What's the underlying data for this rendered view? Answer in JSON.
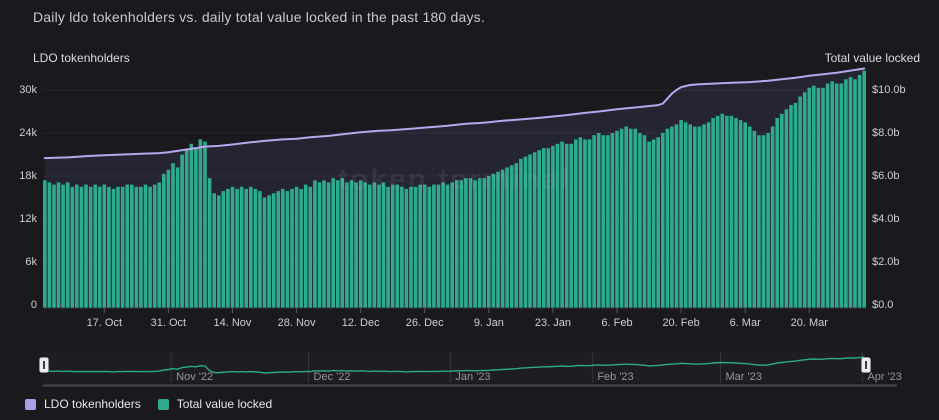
{
  "title": "Daily ldo tokenholders vs. daily total value locked in the past 180 days.",
  "axes": {
    "left": {
      "title": "LDO tokenholders"
    },
    "right": {
      "title": "Total value locked"
    }
  },
  "watermark": "token terminal",
  "legend": [
    {
      "label": "LDO tokenholders",
      "color": "#aba1e8"
    },
    {
      "label": "Total value locked",
      "color": "#2dab8c"
    }
  ],
  "chart_data": {
    "type": "bar+line dual-axis daily time series",
    "days": 180,
    "x_ticks": [
      {
        "label": "17. Oct",
        "day": 13
      },
      {
        "label": "31. Oct",
        "day": 27
      },
      {
        "label": "14. Nov",
        "day": 41
      },
      {
        "label": "28. Nov",
        "day": 55
      },
      {
        "label": "12. Dec",
        "day": 69
      },
      {
        "label": "26. Dec",
        "day": 83
      },
      {
        "label": "9. Jan",
        "day": 97
      },
      {
        "label": "23. Jan",
        "day": 111
      },
      {
        "label": "6. Feb",
        "day": 125
      },
      {
        "label": "20. Feb",
        "day": 139
      },
      {
        "label": "6. Mar",
        "day": 153
      },
      {
        "label": "20. Mar",
        "day": 167
      }
    ],
    "left_axis": {
      "title": "LDO tokenholders",
      "unit": "tokenholders (thousands)",
      "min": 0,
      "max_visible": 33,
      "ticks": [
        {
          "v": 0,
          "label": "0"
        },
        {
          "v": 6,
          "label": "6k"
        },
        {
          "v": 12,
          "label": "12k"
        },
        {
          "v": 18,
          "label": "18k"
        },
        {
          "v": 24,
          "label": "24k"
        },
        {
          "v": 30,
          "label": "30k"
        }
      ]
    },
    "right_axis": {
      "title": "Total value locked",
      "unit": "$ billions",
      "min": 0,
      "max_visible": 11,
      "ticks": [
        {
          "v": 0,
          "label": "$0.0"
        },
        {
          "v": 2,
          "label": "$2.0b"
        },
        {
          "v": 4,
          "label": "$4.0b"
        },
        {
          "v": 6,
          "label": "$6.0b"
        },
        {
          "v": 8,
          "label": "$8.0b"
        },
        {
          "v": 10,
          "label": "$10.0b"
        }
      ]
    },
    "series": [
      {
        "name": "LDO tokenholders",
        "type": "line",
        "axis": "left",
        "color": "#b3a9ec",
        "area_fill": "rgba(148,136,224,0.10)",
        "unit": "thousands of holders",
        "points": [
          [
            0,
            20.5
          ],
          [
            5,
            20.6
          ],
          [
            10,
            20.8
          ],
          [
            13,
            20.9
          ],
          [
            17,
            21.0
          ],
          [
            21,
            21.1
          ],
          [
            25,
            21.2
          ],
          [
            27,
            21.3
          ],
          [
            29,
            21.5
          ],
          [
            31,
            21.7
          ],
          [
            33,
            21.9
          ],
          [
            35,
            22.1
          ],
          [
            38,
            22.2
          ],
          [
            41,
            22.4
          ],
          [
            45,
            22.7
          ],
          [
            48,
            22.9
          ],
          [
            52,
            23.1
          ],
          [
            55,
            23.2
          ],
          [
            58,
            23.4
          ],
          [
            62,
            23.6
          ],
          [
            66,
            23.9
          ],
          [
            69,
            24.1
          ],
          [
            73,
            24.3
          ],
          [
            76,
            24.4
          ],
          [
            80,
            24.6
          ],
          [
            84,
            24.8
          ],
          [
            88,
            25.0
          ],
          [
            92,
            25.3
          ],
          [
            95,
            25.4
          ],
          [
            97,
            25.5
          ],
          [
            100,
            25.7
          ],
          [
            104,
            25.9
          ],
          [
            108,
            26.1
          ],
          [
            111,
            26.3
          ],
          [
            114,
            26.5
          ],
          [
            118,
            26.8
          ],
          [
            121,
            27.0
          ],
          [
            125,
            27.3
          ],
          [
            128,
            27.5
          ],
          [
            131,
            27.7
          ],
          [
            134,
            27.9
          ],
          [
            135,
            28.1
          ],
          [
            136,
            28.8
          ],
          [
            137,
            29.5
          ],
          [
            138,
            30.0
          ],
          [
            139,
            30.4
          ],
          [
            141,
            30.7
          ],
          [
            143,
            30.8
          ],
          [
            146,
            30.9
          ],
          [
            150,
            31.0
          ],
          [
            154,
            31.1
          ],
          [
            158,
            31.3
          ],
          [
            161,
            31.5
          ],
          [
            164,
            31.7
          ],
          [
            167,
            32.0
          ],
          [
            170,
            32.2
          ],
          [
            173,
            32.4
          ],
          [
            176,
            32.7
          ],
          [
            179,
            33.0
          ]
        ]
      },
      {
        "name": "Total value locked",
        "type": "bar",
        "axis": "right",
        "color": "#2dab8c",
        "unit": "$ billions",
        "points": [
          [
            0,
            5.8
          ],
          [
            1,
            5.7
          ],
          [
            2,
            5.6
          ],
          [
            3,
            5.7
          ],
          [
            4,
            5.6
          ],
          [
            5,
            5.7
          ],
          [
            6,
            5.5
          ],
          [
            7,
            5.6
          ],
          [
            8,
            5.5
          ],
          [
            9,
            5.6
          ],
          [
            10,
            5.5
          ],
          [
            11,
            5.6
          ],
          [
            12,
            5.5
          ],
          [
            13,
            5.6
          ],
          [
            14,
            5.5
          ],
          [
            15,
            5.4
          ],
          [
            16,
            5.5
          ],
          [
            17,
            5.5
          ],
          [
            18,
            5.6
          ],
          [
            19,
            5.6
          ],
          [
            20,
            5.5
          ],
          [
            21,
            5.5
          ],
          [
            22,
            5.6
          ],
          [
            23,
            5.5
          ],
          [
            24,
            5.6
          ],
          [
            25,
            5.7
          ],
          [
            26,
            6.1
          ],
          [
            27,
            6.3
          ],
          [
            28,
            6.6
          ],
          [
            29,
            6.4
          ],
          [
            30,
            7.0
          ],
          [
            31,
            7.2
          ],
          [
            32,
            7.5
          ],
          [
            33,
            7.3
          ],
          [
            34,
            7.7
          ],
          [
            35,
            7.6
          ],
          [
            36,
            5.9
          ],
          [
            37,
            5.2
          ],
          [
            38,
            5.1
          ],
          [
            39,
            5.3
          ],
          [
            40,
            5.4
          ],
          [
            41,
            5.5
          ],
          [
            42,
            5.4
          ],
          [
            43,
            5.5
          ],
          [
            44,
            5.4
          ],
          [
            45,
            5.5
          ],
          [
            46,
            5.4
          ],
          [
            47,
            5.3
          ],
          [
            48,
            5.0
          ],
          [
            49,
            5.1
          ],
          [
            50,
            5.2
          ],
          [
            51,
            5.3
          ],
          [
            52,
            5.4
          ],
          [
            53,
            5.3
          ],
          [
            54,
            5.4
          ],
          [
            55,
            5.5
          ],
          [
            56,
            5.4
          ],
          [
            57,
            5.6
          ],
          [
            58,
            5.5
          ],
          [
            59,
            5.8
          ],
          [
            60,
            5.7
          ],
          [
            61,
            5.8
          ],
          [
            62,
            5.7
          ],
          [
            63,
            5.9
          ],
          [
            64,
            5.8
          ],
          [
            65,
            5.9
          ],
          [
            66,
            5.7
          ],
          [
            67,
            5.8
          ],
          [
            68,
            5.7
          ],
          [
            69,
            5.8
          ],
          [
            70,
            5.7
          ],
          [
            71,
            5.6
          ],
          [
            72,
            5.7
          ],
          [
            73,
            5.6
          ],
          [
            74,
            5.7
          ],
          [
            75,
            5.5
          ],
          [
            76,
            5.6
          ],
          [
            77,
            5.6
          ],
          [
            78,
            5.5
          ],
          [
            79,
            5.4
          ],
          [
            80,
            5.5
          ],
          [
            81,
            5.5
          ],
          [
            82,
            5.6
          ],
          [
            83,
            5.6
          ],
          [
            84,
            5.5
          ],
          [
            85,
            5.6
          ],
          [
            86,
            5.6
          ],
          [
            87,
            5.7
          ],
          [
            88,
            5.6
          ],
          [
            89,
            5.7
          ],
          [
            90,
            5.8
          ],
          [
            91,
            5.8
          ],
          [
            92,
            5.9
          ],
          [
            93,
            5.9
          ],
          [
            94,
            5.8
          ],
          [
            95,
            5.9
          ],
          [
            96,
            5.9
          ],
          [
            97,
            6.0
          ],
          [
            98,
            6.1
          ],
          [
            99,
            6.2
          ],
          [
            100,
            6.3
          ],
          [
            101,
            6.4
          ],
          [
            102,
            6.5
          ],
          [
            103,
            6.6
          ],
          [
            104,
            6.8
          ],
          [
            105,
            6.9
          ],
          [
            106,
            7.0
          ],
          [
            107,
            7.1
          ],
          [
            108,
            7.2
          ],
          [
            109,
            7.3
          ],
          [
            110,
            7.3
          ],
          [
            111,
            7.4
          ],
          [
            112,
            7.5
          ],
          [
            113,
            7.6
          ],
          [
            114,
            7.5
          ],
          [
            115,
            7.5
          ],
          [
            116,
            7.7
          ],
          [
            117,
            7.8
          ],
          [
            118,
            7.7
          ],
          [
            119,
            7.7
          ],
          [
            120,
            7.9
          ],
          [
            121,
            8.0
          ],
          [
            122,
            7.9
          ],
          [
            123,
            7.9
          ],
          [
            124,
            8.0
          ],
          [
            125,
            8.1
          ],
          [
            126,
            8.2
          ],
          [
            127,
            8.3
          ],
          [
            128,
            8.2
          ],
          [
            129,
            8.2
          ],
          [
            130,
            8.0
          ],
          [
            131,
            7.9
          ],
          [
            132,
            7.6
          ],
          [
            133,
            7.7
          ],
          [
            134,
            7.8
          ],
          [
            135,
            8.0
          ],
          [
            136,
            8.2
          ],
          [
            137,
            8.3
          ],
          [
            138,
            8.4
          ],
          [
            139,
            8.6
          ],
          [
            140,
            8.5
          ],
          [
            141,
            8.4
          ],
          [
            142,
            8.3
          ],
          [
            143,
            8.3
          ],
          [
            144,
            8.4
          ],
          [
            145,
            8.5
          ],
          [
            146,
            8.7
          ],
          [
            147,
            8.8
          ],
          [
            148,
            8.9
          ],
          [
            149,
            8.8
          ],
          [
            150,
            8.8
          ],
          [
            151,
            8.7
          ],
          [
            152,
            8.6
          ],
          [
            153,
            8.5
          ],
          [
            154,
            8.3
          ],
          [
            155,
            8.1
          ],
          [
            156,
            7.9
          ],
          [
            157,
            7.9
          ],
          [
            158,
            8.0
          ],
          [
            159,
            8.3
          ],
          [
            160,
            8.7
          ],
          [
            161,
            8.9
          ],
          [
            162,
            9.1
          ],
          [
            163,
            9.3
          ],
          [
            164,
            9.4
          ],
          [
            165,
            9.7
          ],
          [
            166,
            9.9
          ],
          [
            167,
            10.1
          ],
          [
            168,
            10.2
          ],
          [
            169,
            10.1
          ],
          [
            170,
            10.1
          ],
          [
            171,
            10.3
          ],
          [
            172,
            10.4
          ],
          [
            173,
            10.3
          ],
          [
            174,
            10.3
          ],
          [
            175,
            10.5
          ],
          [
            176,
            10.6
          ],
          [
            177,
            10.5
          ],
          [
            178,
            10.7
          ],
          [
            179,
            10.9
          ]
        ]
      }
    ],
    "navigator": {
      "months": [
        {
          "label": "Nov '22",
          "day": 28
        },
        {
          "label": "Dec '22",
          "day": 58
        },
        {
          "label": "Jan '23",
          "day": 89
        },
        {
          "label": "Feb '23",
          "day": 120
        },
        {
          "label": "Mar '23",
          "day": 148
        },
        {
          "label": "Apr '23",
          "day": 179
        }
      ]
    }
  }
}
